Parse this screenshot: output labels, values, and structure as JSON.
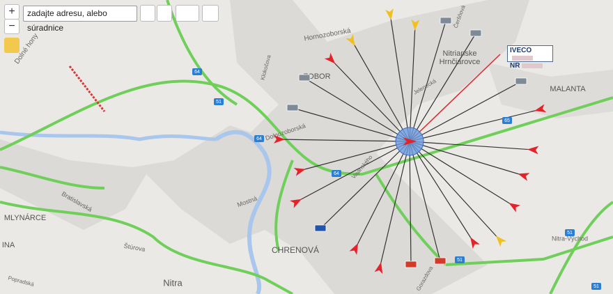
{
  "toolbar": {
    "zoom_in": "+",
    "zoom_out": "−",
    "search_placeholder": "zadajte adresu, alebo súradnice"
  },
  "popup": {
    "brand": "IVECO",
    "plate": "NR"
  },
  "places": [
    "Dolné hony",
    "Hornozoborská",
    "Dolnozoborská",
    "ZOBOR",
    "Nitrianske",
    "Hrnčiarovce",
    "MALANTA",
    "MLYNÁRCE",
    "CHRENOVÁ",
    "Nitra",
    "Nitra-Východ",
    "Štúrova",
    "Bratislavská",
    "Mostná",
    "Jelenecká",
    "Popradská",
    "Gorazdova",
    "Klokočova",
    "Čeršňová",
    "Vajanského",
    "INA"
  ],
  "shields": [
    "64",
    "51",
    "64",
    "64",
    "65",
    "51",
    "51",
    "51"
  ]
}
